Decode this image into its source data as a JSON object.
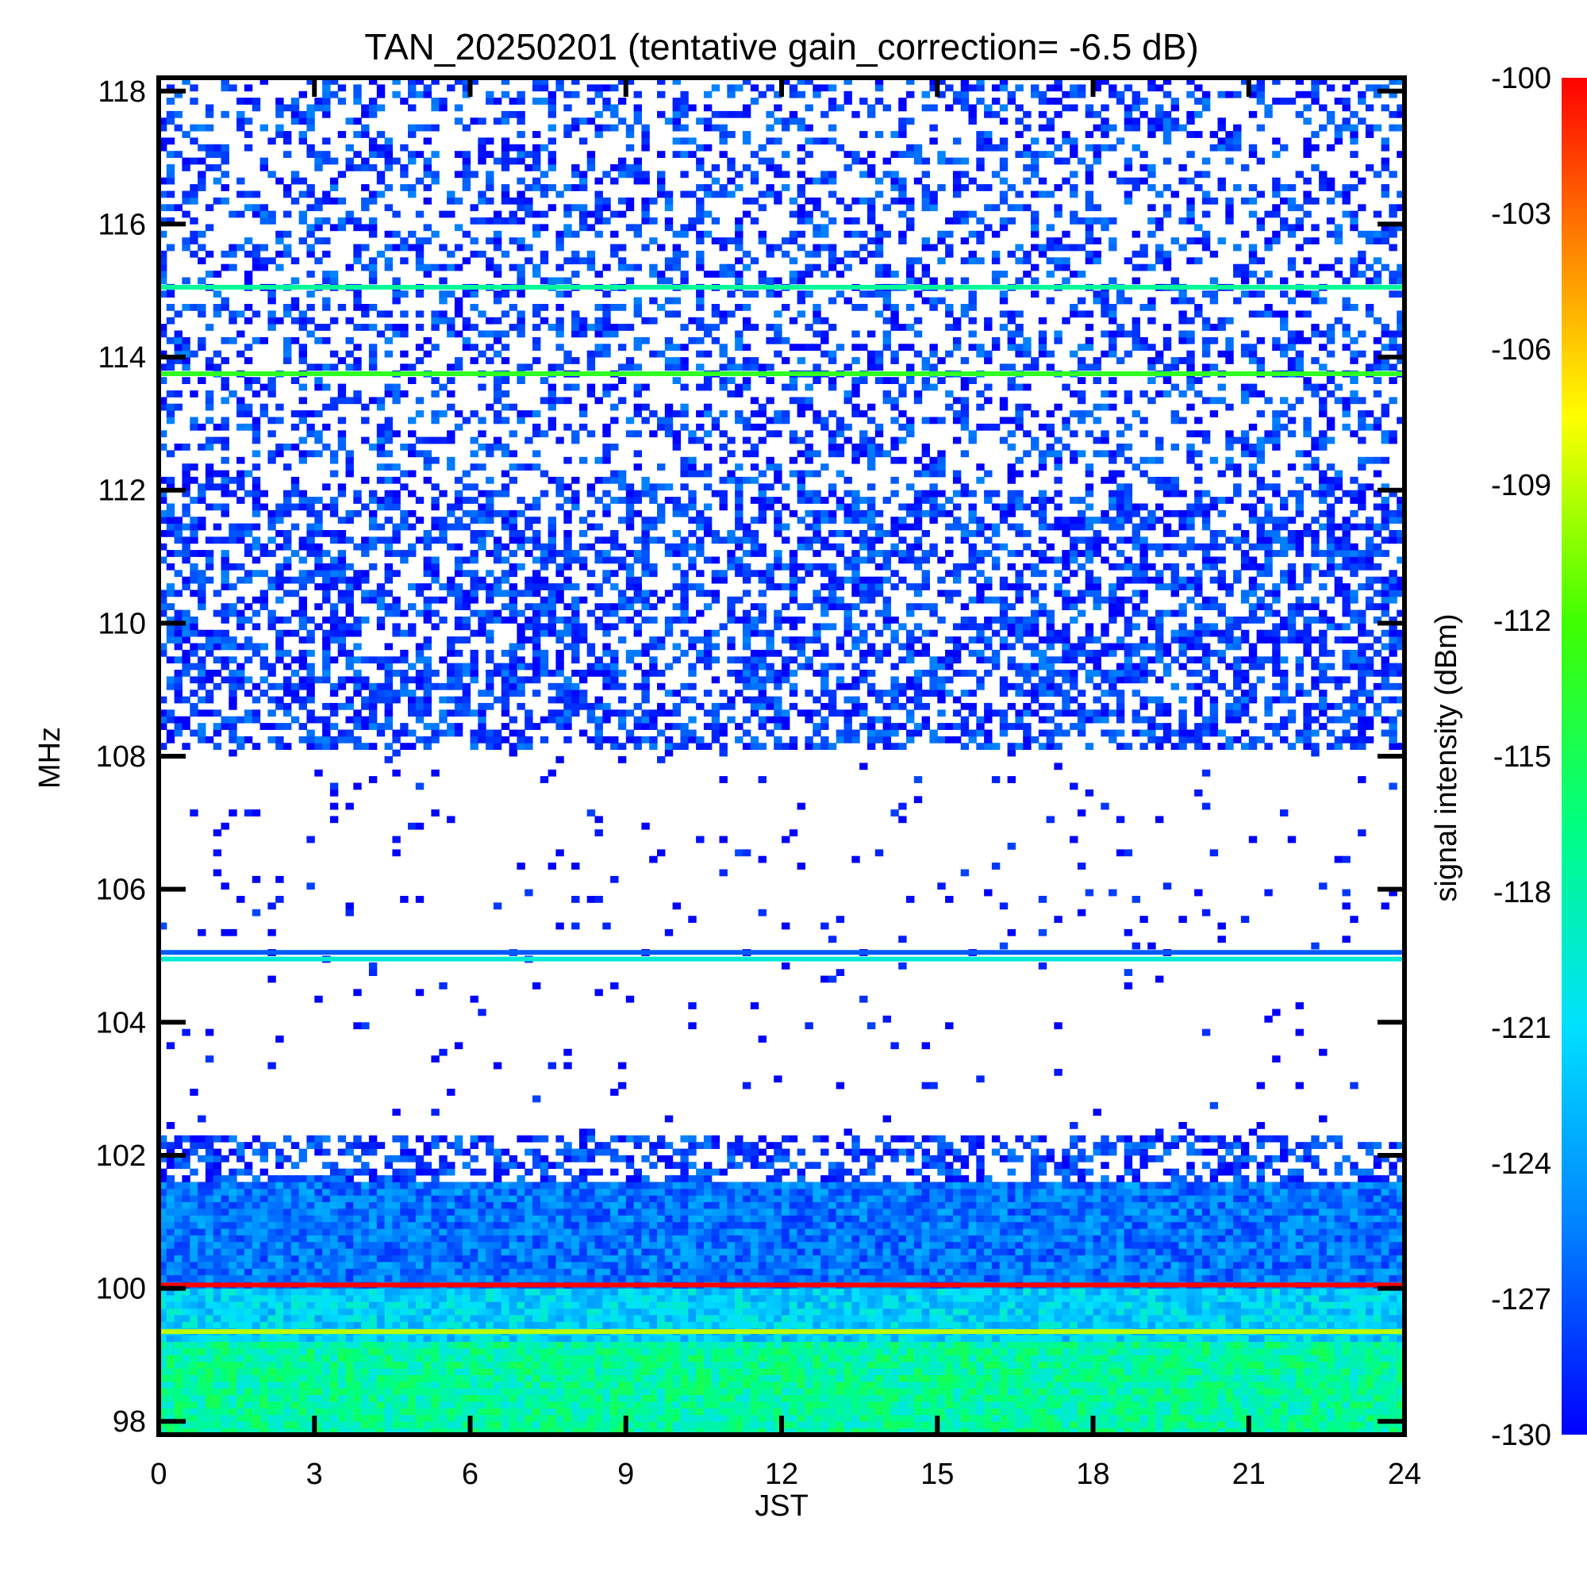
{
  "chart_data": {
    "type": "heatmap",
    "title": "TAN_20250201 (tentative gain_correction= -6.5 dB)",
    "xlabel": "JST",
    "ylabel": "MHz",
    "colorbar_label": "signal intensity (dBm)",
    "xlim": [
      0,
      24
    ],
    "ylim": [
      97.8,
      118.2
    ],
    "x_ticks": [
      0,
      3,
      6,
      9,
      12,
      15,
      18,
      21,
      24
    ],
    "x_tick_labels": [
      "0",
      "3",
      "6",
      "9",
      "12",
      "15",
      "18",
      "21",
      "24"
    ],
    "y_ticks": [
      98,
      100,
      102,
      104,
      106,
      108,
      110,
      112,
      114,
      116,
      118
    ],
    "y_tick_labels": [
      "98",
      "100",
      "102",
      "104",
      "106",
      "108",
      "110",
      "112",
      "114",
      "116",
      "118"
    ],
    "color_range": [
      -130,
      -100
    ],
    "colorbar_ticks": [
      -100,
      -103,
      -106,
      -109,
      -112,
      -115,
      -118,
      -121,
      -124,
      -127,
      -130
    ],
    "colorbar_tick_labels": [
      "-100",
      "-103",
      "-106",
      "-109",
      "-112",
      "-115",
      "-118",
      "-121",
      "-124",
      "-127",
      "-130"
    ],
    "colormap": [
      "#0000ff",
      "#0080ff",
      "#00e0ff",
      "#00ff80",
      "#40ff00",
      "#ffff00",
      "#ff8000",
      "#ff0000"
    ],
    "frequency_bands": [
      {
        "from_mhz": 97.8,
        "to_mhz": 99.2,
        "level_dbm": -118,
        "texture": "dense"
      },
      {
        "from_mhz": 99.2,
        "to_mhz": 100.0,
        "level_dbm": -122,
        "texture": "dense"
      },
      {
        "from_mhz": 100.0,
        "to_mhz": 101.6,
        "level_dbm": -126,
        "texture": "dense"
      },
      {
        "from_mhz": 101.6,
        "to_mhz": 102.3,
        "level_dbm": -128,
        "texture": "moderate"
      },
      {
        "from_mhz": 102.3,
        "to_mhz": 108.1,
        "level_dbm": -130,
        "texture": "sparse"
      },
      {
        "from_mhz": 108.1,
        "to_mhz": 112.0,
        "level_dbm": -128,
        "texture": "moderate"
      },
      {
        "from_mhz": 112.0,
        "to_mhz": 118.2,
        "level_dbm": -128,
        "texture": "light"
      }
    ],
    "constant_lines": [
      {
        "freq_mhz": 100.05,
        "level_dbm": -100
      },
      {
        "freq_mhz": 99.35,
        "level_dbm": -110
      },
      {
        "freq_mhz": 104.95,
        "level_dbm": -120
      },
      {
        "freq_mhz": 105.05,
        "level_dbm": -127
      },
      {
        "freq_mhz": 113.75,
        "level_dbm": -114
      },
      {
        "freq_mhz": 115.05,
        "level_dbm": -118
      }
    ]
  }
}
